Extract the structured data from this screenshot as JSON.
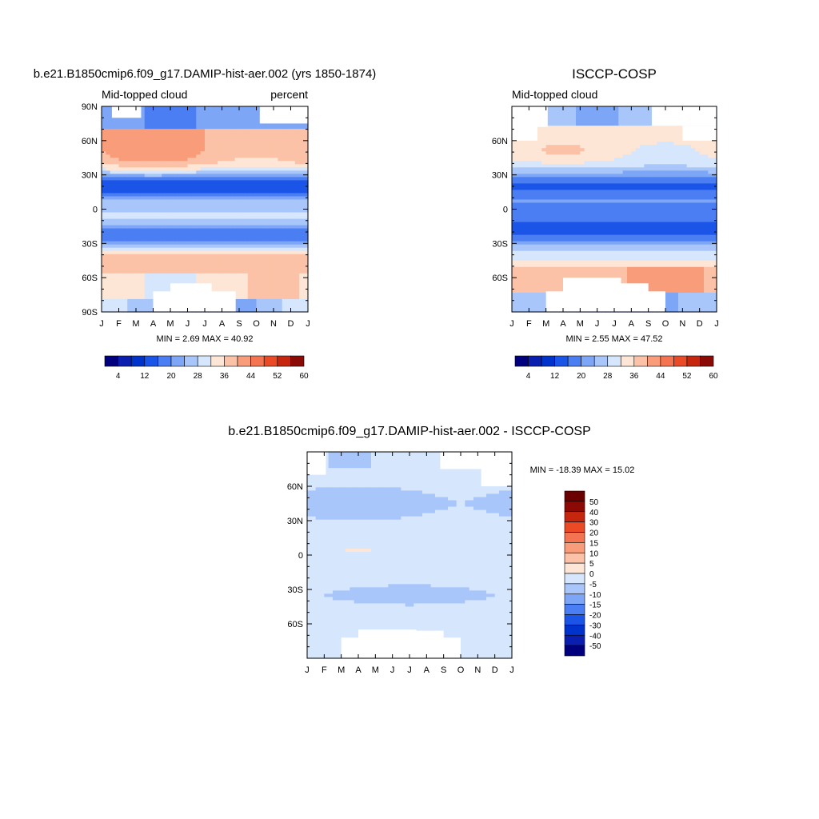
{
  "chart_data": [
    {
      "type": "heatmap",
      "title": "b.e21.B1850cmip6.f09_g17.DAMIP-hist-aer.002 (yrs 1850-1874)",
      "left_label": "Mid-topped cloud",
      "right_label": "percent",
      "x_ticks": [
        "J",
        "F",
        "M",
        "A",
        "M",
        "J",
        "J",
        "A",
        "S",
        "O",
        "N",
        "D",
        "J"
      ],
      "y_ticks": [
        "90N",
        "60N",
        "30N",
        "0",
        "30S",
        "60S",
        "90S"
      ],
      "y_values": [
        90,
        60,
        30,
        0,
        -30,
        -60,
        -90
      ],
      "ylim": [
        -90,
        90
      ],
      "xlim": [
        0,
        12
      ],
      "stats": "MIN =   2.69 MAX =  40.92",
      "min": 2.69,
      "max": 40.92,
      "colorbar_orientation": "horizontal",
      "colorbar_labels": [
        "4",
        "12",
        "20",
        "28",
        "36",
        "44",
        "52",
        "60"
      ],
      "colorbar_levels": [
        4,
        8,
        12,
        16,
        20,
        24,
        28,
        32,
        36,
        40,
        44,
        48,
        52,
        56,
        60
      ],
      "colorbar_colors": [
        "#00007f",
        "#0a1fb0",
        "#0033cc",
        "#1b55e8",
        "#4a7ef2",
        "#7ea6f6",
        "#a9c6fa",
        "#d6e6fd",
        "#fde6d6",
        "#fbc2a7",
        "#f89c7a",
        "#f47350",
        "#ea4a25",
        "#c7260e",
        "#8c0a05"
      ],
      "field": "model"
    },
    {
      "type": "heatmap",
      "title": "ISCCP-COSP",
      "left_label": "Mid-topped cloud",
      "right_label": "",
      "x_ticks": [
        "J",
        "F",
        "M",
        "A",
        "M",
        "J",
        "J",
        "A",
        "S",
        "O",
        "N",
        "D",
        "J"
      ],
      "y_ticks": [
        "60N",
        "30N",
        "0",
        "30S",
        "60S"
      ],
      "y_values": [
        60,
        30,
        0,
        -30,
        -60
      ],
      "ylim": [
        -90,
        90
      ],
      "xlim": [
        0,
        12
      ],
      "stats": "MIN =   2.55 MAX =  47.52",
      "min": 2.55,
      "max": 47.52,
      "colorbar_orientation": "horizontal",
      "colorbar_labels": [
        "4",
        "12",
        "20",
        "28",
        "36",
        "44",
        "52",
        "60"
      ],
      "colorbar_levels": [
        4,
        8,
        12,
        16,
        20,
        24,
        28,
        32,
        36,
        40,
        44,
        48,
        52,
        56,
        60
      ],
      "colorbar_colors": [
        "#00007f",
        "#0a1fb0",
        "#0033cc",
        "#1b55e8",
        "#4a7ef2",
        "#7ea6f6",
        "#a9c6fa",
        "#d6e6fd",
        "#fde6d6",
        "#fbc2a7",
        "#f89c7a",
        "#f47350",
        "#ea4a25",
        "#c7260e",
        "#8c0a05"
      ],
      "field": "obs"
    },
    {
      "type": "heatmap",
      "title": "b.e21.B1850cmip6.f09_g17.DAMIP-hist-aer.002 - ISCCP-COSP",
      "left_label": "",
      "right_label": "",
      "x_ticks": [
        "J",
        "F",
        "M",
        "A",
        "M",
        "J",
        "J",
        "A",
        "S",
        "O",
        "N",
        "D",
        "J"
      ],
      "y_ticks": [
        "60N",
        "30N",
        "0",
        "30S",
        "60S"
      ],
      "y_values": [
        60,
        30,
        0,
        -30,
        -60
      ],
      "ylim": [
        -90,
        90
      ],
      "xlim": [
        0,
        12
      ],
      "stats": "MIN = -18.39 MAX =  15.02",
      "min": -18.39,
      "max": 15.02,
      "colorbar_orientation": "vertical",
      "colorbar_labels": [
        "50",
        "40",
        "30",
        "20",
        "15",
        "10",
        "5",
        "0",
        "-5",
        "-10",
        "-15",
        "-20",
        "-30",
        "-40",
        "-50"
      ],
      "colorbar_levels": [
        -50,
        -40,
        -30,
        -20,
        -15,
        -10,
        -5,
        0,
        5,
        10,
        15,
        20,
        30,
        40,
        50
      ],
      "colorbar_colors": [
        "#00007f",
        "#0a1fb0",
        "#0033cc",
        "#1b55e8",
        "#4a7ef2",
        "#7ea6f6",
        "#a9c6fa",
        "#d6e6fd",
        "#fde6d6",
        "#fbc2a7",
        "#f89c7a",
        "#f47350",
        "#ea4a25",
        "#c7260e",
        "#8c0a05",
        "#6a0000"
      ],
      "field": "diff"
    }
  ]
}
